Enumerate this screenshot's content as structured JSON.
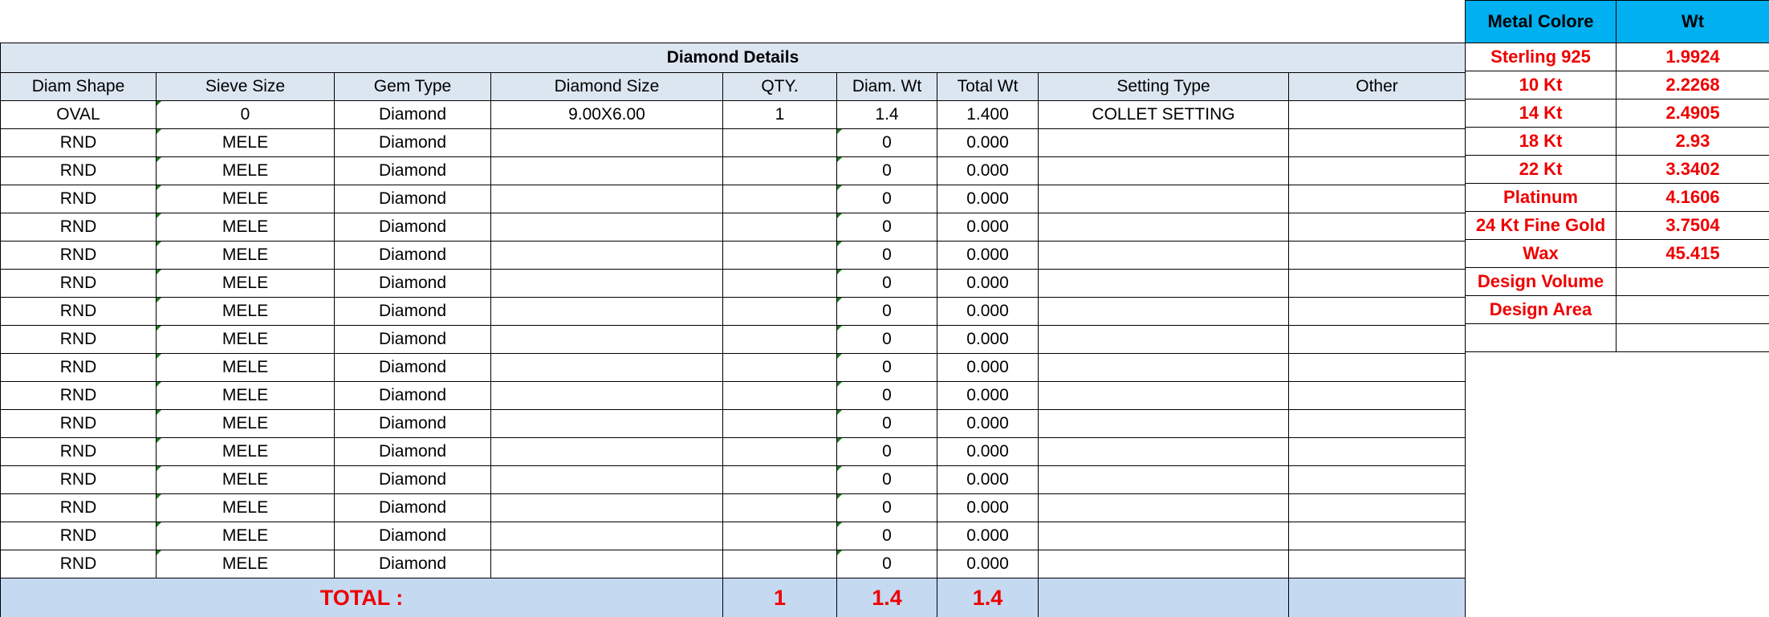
{
  "diamond_table": {
    "title": "Diamond Details",
    "columns": [
      "Diam Shape",
      "Sieve Size",
      "Gem Type",
      "Diamond Size",
      "QTY.",
      "Diam. Wt",
      "Total Wt",
      "Setting Type",
      "Other"
    ],
    "rows": [
      [
        "OVAL",
        "0",
        "Diamond",
        "9.00X6.00",
        "1",
        "1.4",
        "1.400",
        "COLLET SETTING",
        ""
      ],
      [
        "RND",
        "MELE",
        "Diamond",
        "",
        "",
        "0",
        "0.000",
        "",
        ""
      ],
      [
        "RND",
        "MELE",
        "Diamond",
        "",
        "",
        "0",
        "0.000",
        "",
        ""
      ],
      [
        "RND",
        "MELE",
        "Diamond",
        "",
        "",
        "0",
        "0.000",
        "",
        ""
      ],
      [
        "RND",
        "MELE",
        "Diamond",
        "",
        "",
        "0",
        "0.000",
        "",
        ""
      ],
      [
        "RND",
        "MELE",
        "Diamond",
        "",
        "",
        "0",
        "0.000",
        "",
        ""
      ],
      [
        "RND",
        "MELE",
        "Diamond",
        "",
        "",
        "0",
        "0.000",
        "",
        ""
      ],
      [
        "RND",
        "MELE",
        "Diamond",
        "",
        "",
        "0",
        "0.000",
        "",
        ""
      ],
      [
        "RND",
        "MELE",
        "Diamond",
        "",
        "",
        "0",
        "0.000",
        "",
        ""
      ],
      [
        "RND",
        "MELE",
        "Diamond",
        "",
        "",
        "0",
        "0.000",
        "",
        ""
      ],
      [
        "RND",
        "MELE",
        "Diamond",
        "",
        "",
        "0",
        "0.000",
        "",
        ""
      ],
      [
        "RND",
        "MELE",
        "Diamond",
        "",
        "",
        "0",
        "0.000",
        "",
        ""
      ],
      [
        "RND",
        "MELE",
        "Diamond",
        "",
        "",
        "0",
        "0.000",
        "",
        ""
      ],
      [
        "RND",
        "MELE",
        "Diamond",
        "",
        "",
        "0",
        "0.000",
        "",
        ""
      ],
      [
        "RND",
        "MELE",
        "Diamond",
        "",
        "",
        "0",
        "0.000",
        "",
        ""
      ],
      [
        "RND",
        "MELE",
        "Diamond",
        "",
        "",
        "0",
        "0.000",
        "",
        ""
      ],
      [
        "RND",
        "MELE",
        "Diamond",
        "",
        "",
        "0",
        "0.000",
        "",
        ""
      ]
    ],
    "total": {
      "label": "TOTAL :",
      "qty": "1",
      "diam_wt": "1.4",
      "total_wt": "1.4"
    }
  },
  "metal_table": {
    "columns": [
      "Metal Colore",
      "Wt"
    ],
    "rows": [
      [
        "Sterling 925",
        "1.9924"
      ],
      [
        "10 Kt",
        "2.2268"
      ],
      [
        "14 Kt",
        "2.4905"
      ],
      [
        "18 Kt",
        "2.93"
      ],
      [
        "22 Kt",
        "3.3402"
      ],
      [
        "Platinum",
        "4.1606"
      ],
      [
        "24 Kt Fine Gold",
        "3.7504"
      ],
      [
        "Wax",
        "45.415"
      ],
      [
        "Design Volume",
        ""
      ],
      [
        "Design Area",
        ""
      ],
      [
        "",
        ""
      ]
    ]
  },
  "colors": {
    "header_bg": "#dce6f1",
    "total_bg": "#c5d9f1",
    "metal_header_bg": "#00b0f0",
    "accent_text": "#e00000"
  }
}
